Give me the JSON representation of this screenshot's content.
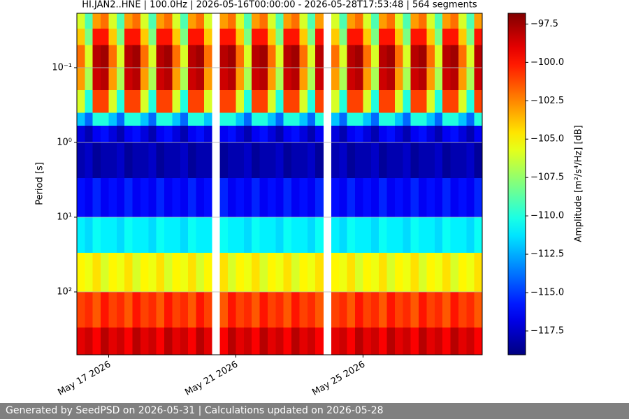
{
  "chart_data": {
    "type": "heatmap",
    "title": "HI.JAN2..HNE | 100.0Hz | 2026-05-16T00:00:00 - 2026-05-28T17:53:48 | 564 segments",
    "ylabel": "Period [s]",
    "colorbar_label": "Amplitude [m²/s⁴/Hz] [dB]",
    "colormap": "jet",
    "log_y": true,
    "grid": "y",
    "x": [
      "2026-05-16T00:00",
      "2026-05-16T06:00",
      "2026-05-16T12:00",
      "2026-05-16T18:00",
      "2026-05-17T00:00",
      "2026-05-17T06:00",
      "2026-05-17T12:00",
      "2026-05-17T18:00",
      "2026-05-18T00:00",
      "2026-05-18T06:00",
      "2026-05-18T12:00",
      "2026-05-18T18:00",
      "2026-05-19T00:00",
      "2026-05-19T06:00",
      "2026-05-19T12:00",
      "2026-05-19T18:00",
      "2026-05-20T00:00",
      "2026-05-20T06:00",
      "2026-05-20T12:00",
      "2026-05-20T18:00",
      "2026-05-21T00:00",
      "2026-05-21T06:00",
      "2026-05-21T12:00",
      "2026-05-21T18:00",
      "2026-05-22T00:00",
      "2026-05-22T06:00",
      "2026-05-22T12:00",
      "2026-05-22T18:00",
      "2026-05-23T00:00",
      "2026-05-23T06:00",
      "2026-05-23T12:00",
      "2026-05-23T18:00",
      "2026-05-24T00:00",
      "2026-05-24T06:00",
      "2026-05-24T12:00",
      "2026-05-24T18:00",
      "2026-05-25T00:00",
      "2026-05-25T06:00",
      "2026-05-25T12:00",
      "2026-05-25T18:00",
      "2026-05-26T00:00",
      "2026-05-26T06:00",
      "2026-05-26T12:00",
      "2026-05-26T18:00",
      "2026-05-27T00:00",
      "2026-05-27T06:00",
      "2026-05-27T12:00",
      "2026-05-27T18:00",
      "2026-05-28T00:00",
      "2026-05-28T06:00",
      "2026-05-28T12:00",
      "2026-05-28T18:00"
    ],
    "xlim": [
      "2026-05-16T00:00",
      "2026-05-28T18:00"
    ],
    "xticks": [
      {
        "value": "2026-05-17T00:00",
        "label": "May 17 2026"
      },
      {
        "value": "2026-05-21T00:00",
        "label": "May 21 2026"
      },
      {
        "value": "2026-05-25T00:00",
        "label": "May 25 2026"
      }
    ],
    "y_edges": [
      0.0187,
      0.03,
      0.05,
      0.1,
      0.2,
      0.4,
      0.6,
      1,
      3,
      10,
      30,
      100,
      300,
      693
    ],
    "ylim": [
      0.0187,
      693
    ],
    "yticks": [
      {
        "value": 0.1,
        "label": "10⁻¹"
      },
      {
        "value": 1,
        "label": "10⁰"
      },
      {
        "value": 10,
        "label": "10¹"
      },
      {
        "value": 100,
        "label": "10²"
      }
    ],
    "values": [
      [
        -106,
        -109,
        -103,
        -102,
        -106,
        -109,
        -103,
        -102,
        -106,
        -109,
        -103,
        -102,
        -106,
        -109,
        -103,
        -102,
        -106,
        null,
        -103,
        -102,
        -106,
        -109,
        -103,
        -102,
        -106,
        -109,
        -103,
        -102,
        -106,
        -109,
        -103,
        null,
        -106,
        -109,
        -103,
        -102,
        -106,
        -109,
        -103,
        -102,
        -106,
        -109,
        -103,
        -102,
        -106,
        -109,
        -103,
        -102,
        -106,
        -109,
        -103
      ],
      [
        -104,
        -108,
        -100,
        -100,
        -104,
        -108,
        -100,
        -100,
        -104,
        -108,
        -100,
        -100,
        -104,
        -108,
        -100,
        -100,
        -104,
        null,
        -100,
        -100,
        -104,
        -108,
        -100,
        -100,
        -104,
        -108,
        -100,
        -100,
        -104,
        -108,
        -100,
        null,
        -104,
        -108,
        -100,
        -100,
        -104,
        -108,
        -100,
        -100,
        -104,
        -108,
        -100,
        -100,
        -104,
        -108,
        -100,
        -100,
        -104,
        -108,
        -100
      ],
      [
        -102,
        -106,
        -98,
        -97.5,
        -102,
        -106,
        -98,
        -97.5,
        -102,
        -106,
        -98,
        -97.5,
        -102,
        -106,
        -98,
        -97.5,
        -102,
        null,
        -98,
        -97.5,
        -102,
        -106,
        -98,
        -97.5,
        -102,
        -106,
        -98,
        -97.5,
        -102,
        -106,
        -98,
        null,
        -102,
        -106,
        -98,
        -97.5,
        -102,
        -106,
        -98,
        -97.5,
        -102,
        -106,
        -98,
        -97.5,
        -102,
        -106,
        -98,
        -97.5,
        -102,
        -106,
        -98
      ],
      [
        -103,
        -107,
        -98.5,
        -98,
        -103,
        -107,
        -98.5,
        -98,
        -103,
        -107,
        -98.5,
        -98,
        -103,
        -107,
        -98.5,
        -98,
        -103,
        null,
        -98.5,
        -98,
        -103,
        -107,
        -98.5,
        -98,
        -103,
        -107,
        -98.5,
        -98,
        -103,
        -107,
        -98.5,
        null,
        -103,
        -107,
        -98.5,
        -98,
        -103,
        -107,
        -98.5,
        -98,
        -103,
        -107,
        -98.5,
        -98,
        -103,
        -107,
        -98.5,
        -98,
        -103,
        -107,
        -98.5
      ],
      [
        -106,
        -110,
        -101,
        -101,
        -106,
        -110,
        -101,
        -101,
        -106,
        -110,
        -101,
        -101,
        -106,
        -110,
        -101,
        -101,
        -106,
        null,
        -101,
        -101,
        -106,
        -110,
        -101,
        -101,
        -106,
        -110,
        -101,
        -101,
        -106,
        -110,
        -101,
        null,
        -106,
        -110,
        -101,
        -101,
        -106,
        -110,
        -101,
        -101,
        -106,
        -110,
        -101,
        -101,
        -106,
        -110,
        -101,
        -101,
        -106,
        -110,
        -101
      ],
      [
        -112,
        -114,
        -110,
        -110,
        -112,
        -114,
        -110,
        -110,
        -112,
        -114,
        -110,
        -110,
        -112,
        -114,
        -110,
        -110,
        -112,
        null,
        -110,
        -110,
        -112,
        -114,
        -110,
        -110,
        -112,
        -114,
        -110,
        -110,
        -112,
        -114,
        -110,
        null,
        -112,
        -114,
        -110,
        -110,
        -112,
        -114,
        -110,
        -110,
        -112,
        -114,
        -110,
        -110,
        -112,
        -114,
        -110,
        -110,
        -112,
        -114,
        -110
      ],
      [
        -117,
        -118,
        -116.5,
        -116,
        -117,
        -118,
        -116.5,
        -116,
        -117,
        -118,
        -116.5,
        -116,
        -117,
        -118,
        -116.5,
        -116,
        -117,
        null,
        -116.5,
        -116,
        -117,
        -118,
        -116.5,
        -116,
        -117,
        -118,
        -116.5,
        -116,
        -117,
        -118,
        -116.5,
        null,
        -117,
        -118,
        -116.5,
        -116,
        -117,
        -118,
        -116.5,
        -116,
        -117,
        -118,
        -116.5,
        -116,
        -117,
        -118,
        -116.5,
        -116,
        -117,
        -118,
        -116.5
      ],
      [
        -118,
        -117.5,
        -118.5,
        -118,
        -118,
        -117.5,
        -118.5,
        -118,
        -118,
        -117.5,
        -118.5,
        -118,
        -118,
        -117.5,
        -118.5,
        -118,
        -118,
        null,
        -118.5,
        -118,
        -118,
        -117.5,
        -118.5,
        -118,
        -118,
        -117.5,
        -118.5,
        -118,
        -118,
        -117.5,
        -118.5,
        null,
        -118,
        -117.5,
        -118.5,
        -118,
        -118,
        -117.5,
        -118.5,
        -118,
        -118,
        -117.5,
        -118.5,
        -118,
        -118,
        -117.5,
        -118.5,
        -118,
        -118,
        -117.5,
        -118.5
      ],
      [
        -116,
        -116.5,
        -115.5,
        -116.5,
        -116,
        -116.5,
        -115.5,
        -116.5,
        -116,
        -116.5,
        -115.5,
        -116.5,
        -116,
        -116.5,
        -115.5,
        -116.5,
        -116,
        null,
        -115.5,
        -116.5,
        -116,
        -116.5,
        -115.5,
        -116.5,
        -116,
        -116.5,
        -115.5,
        -116.5,
        -116,
        -116.5,
        -115.5,
        null,
        -116,
        -116.5,
        -115.5,
        -116.5,
        -116,
        -116.5,
        -115.5,
        -116.5,
        -116,
        -116.5,
        -115.5,
        -116.5,
        -116,
        -116.5,
        -115.5,
        -116.5,
        -116,
        -116.5,
        -115.5
      ],
      [
        -111,
        -111.5,
        -110.5,
        -111,
        -111,
        -111.5,
        -110.5,
        -111,
        -111,
        -111.5,
        -110.5,
        -111,
        -111,
        -111.5,
        -110.5,
        -111,
        -111,
        null,
        -110.5,
        -111,
        -111,
        -111.5,
        -110.5,
        -111,
        -111,
        -111.5,
        -110.5,
        -111,
        -111,
        -111.5,
        -110.5,
        null,
        -111,
        -111.5,
        -110.5,
        -111,
        -111,
        -111.5,
        -110.5,
        -111,
        -111,
        -111.5,
        -110.5,
        -111,
        -111,
        -111.5,
        -110.5,
        -111,
        -111,
        -111.5,
        -110.5
      ],
      [
        -105,
        -105.5,
        -104.5,
        -106,
        -105,
        -105.5,
        -104.5,
        -106,
        -105,
        -105.5,
        -104.5,
        -106,
        -105,
        -105.5,
        -104.5,
        -106,
        -105,
        null,
        -104.5,
        -106,
        -105,
        -105.5,
        -104.5,
        -106,
        -105,
        -105.5,
        -104.5,
        -106,
        -105,
        -105.5,
        -104.5,
        null,
        -105,
        -105.5,
        -104.5,
        -106,
        -105,
        -105.5,
        -104.5,
        -106,
        -105,
        -105.5,
        -104.5,
        -106,
        -105,
        -105.5,
        -104.5,
        -106,
        -105,
        -105.5,
        -104.5
      ],
      [
        -101,
        -100.5,
        -101.5,
        -100,
        -101,
        -100.5,
        -101.5,
        -100,
        -101,
        -100.5,
        -101.5,
        -100,
        -101,
        -100.5,
        -101.5,
        -100,
        -101,
        null,
        -101.5,
        -100,
        -101,
        -100.5,
        -101.5,
        -100,
        -101,
        -100.5,
        -101.5,
        -100,
        -101,
        -100.5,
        -101.5,
        null,
        -101,
        -100.5,
        -101.5,
        -100,
        -101,
        -100.5,
        -101.5,
        -100,
        -101,
        -100.5,
        -101.5,
        -100,
        -101,
        -100.5,
        -101.5,
        -100,
        -101,
        -100.5,
        -101.5
      ],
      [
        -99,
        -98.5,
        -99.5,
        -98,
        -99,
        -98.5,
        -99.5,
        -98,
        -99,
        -98.5,
        -99.5,
        -98,
        -99,
        -98.5,
        -99.5,
        -98,
        -99,
        null,
        -99.5,
        -98,
        -99,
        -98.5,
        -99.5,
        -98,
        -99,
        -98.5,
        -99.5,
        -98,
        -99,
        -98.5,
        -99.5,
        null,
        -99,
        -98.5,
        -99.5,
        -98,
        -99,
        -98.5,
        -99.5,
        -98,
        -99,
        -98.5,
        -99.5,
        -98,
        -99,
        -98.5,
        -99.5,
        -98,
        -99,
        -98.5,
        -99.5
      ]
    ],
    "clim": [
      -119.05,
      -96.8
    ],
    "cticks": [
      {
        "value": -97.5,
        "label": "−97.5"
      },
      {
        "value": -100,
        "label": "−100.0"
      },
      {
        "value": -102.5,
        "label": "−102.5"
      },
      {
        "value": -105,
        "label": "−105.0"
      },
      {
        "value": -107.5,
        "label": "−107.5"
      },
      {
        "value": -110,
        "label": "−110.0"
      },
      {
        "value": -112.5,
        "label": "−112.5"
      },
      {
        "value": -115,
        "label": "−115.0"
      },
      {
        "value": -117.5,
        "label": "−117.5"
      }
    ]
  },
  "footer": {
    "text": "Generated by SeedPSD on 2026-05-31 | Calculations updated on 2026-05-28"
  }
}
